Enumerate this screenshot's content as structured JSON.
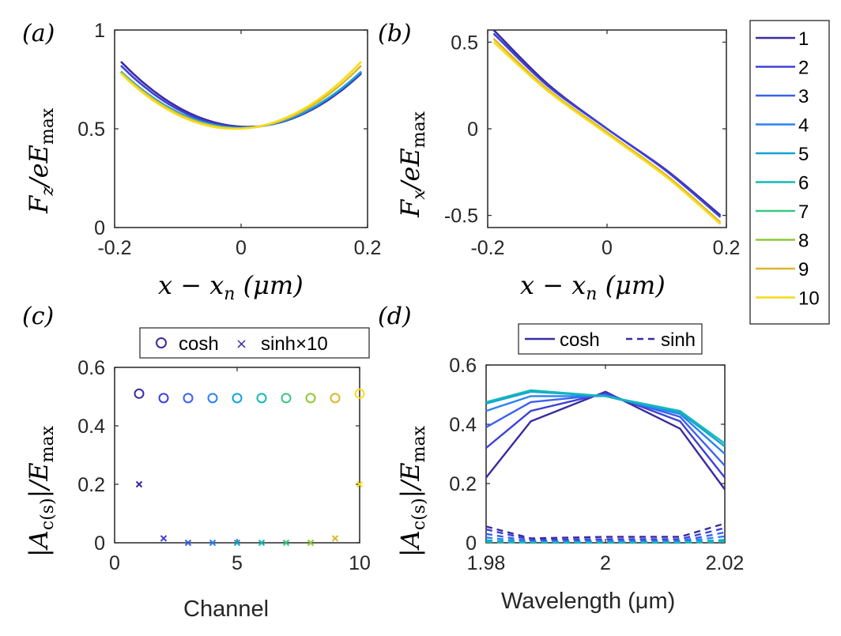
{
  "figure": {
    "palette": [
      "#3a2c9e",
      "#3e41d6",
      "#3a62ef",
      "#2c82f0",
      "#12a3d8",
      "#16b9b6",
      "#3ac87f",
      "#8fc83a",
      "#dcb62f",
      "#f7dc1c"
    ],
    "axis_color": "#262626"
  },
  "panels": {
    "a": {
      "label": "(a)",
      "xlabel": "x − x",
      "xlabel_sub": "n",
      "xlabel_unit": " (μm)",
      "ylabel": "F",
      "ylabel_sub": "z",
      "ylabel_mid": "/eE",
      "ylabel_sub2": "max"
    },
    "b": {
      "label": "(b)",
      "xlabel": "x − x",
      "xlabel_sub": "n",
      "xlabel_unit": " (μm)",
      "ylabel": "F",
      "ylabel_sub": "x",
      "ylabel_mid": "/eE",
      "ylabel_sub2": "max"
    },
    "c": {
      "label": "(c)",
      "xlabel": "Channel",
      "ylabel": "|A",
      "ylabel_sub": "c(s)",
      "ylabel_mid": "|/E",
      "ylabel_sub2": "max"
    },
    "d": {
      "label": "(d)",
      "xlabel": "Wavelength (μm)",
      "ylabel": "|A",
      "ylabel_sub": "c(s)",
      "ylabel_mid": "|/E",
      "ylabel_sub2": "max"
    }
  },
  "chart_data": [
    {
      "id": "a",
      "type": "line",
      "xlim": [
        -0.2,
        0.2
      ],
      "ylim": [
        0,
        1
      ],
      "xticks": [
        "-0.2",
        "0",
        "0.2"
      ],
      "yticks": [
        "0",
        "0.5",
        "1"
      ],
      "x": [
        -0.19,
        0.19
      ],
      "series": [
        {
          "name": "1",
          "color": "#3a2c9e",
          "vertex": 0.01,
          "ymin": 0.51,
          "yleft": 0.84,
          "yright": 0.78
        },
        {
          "name": "2",
          "color": "#3e41d6",
          "vertex": 0.005,
          "ymin": 0.508,
          "yleft": 0.82,
          "yright": 0.785
        },
        {
          "name": "5",
          "color": "#12a3d8",
          "vertex": 0.0,
          "ymin": 0.505,
          "yleft": 0.79,
          "yright": 0.79
        },
        {
          "name": "9",
          "color": "#dcb62f",
          "vertex": -0.005,
          "ymin": 0.502,
          "yleft": 0.785,
          "yright": 0.82
        },
        {
          "name": "10",
          "color": "#f7dc1c",
          "vertex": -0.01,
          "ymin": 0.5,
          "yleft": 0.78,
          "yright": 0.84
        }
      ]
    },
    {
      "id": "b",
      "type": "line",
      "xlim": [
        -0.2,
        0.2
      ],
      "ylim": [
        -0.57,
        0.57
      ],
      "xticks": [
        "-0.2",
        "0",
        "0.2"
      ],
      "yticks": [
        "-0.5",
        "0",
        "0.5"
      ],
      "series": [
        {
          "name": "1",
          "color": "#3a2c9e",
          "x": [
            -0.19,
            -0.1,
            0,
            0.1,
            0.19
          ],
          "y": [
            0.57,
            0.26,
            0.0,
            -0.24,
            -0.5
          ]
        },
        {
          "name": "2",
          "color": "#3e41d6",
          "x": [
            -0.19,
            -0.1,
            0,
            0.1,
            0.19
          ],
          "y": [
            0.55,
            0.25,
            0.0,
            -0.245,
            -0.51
          ]
        },
        {
          "name": "9",
          "color": "#dcb62f",
          "x": [
            -0.19,
            -0.1,
            0,
            0.1,
            0.19
          ],
          "y": [
            0.52,
            0.23,
            -0.02,
            -0.27,
            -0.54
          ]
        },
        {
          "name": "10",
          "color": "#f7dc1c",
          "x": [
            -0.19,
            -0.1,
            0,
            0.1,
            0.19
          ],
          "y": [
            0.5,
            0.22,
            -0.03,
            -0.28,
            -0.55
          ]
        }
      ]
    },
    {
      "id": "c",
      "type": "scatter",
      "xlim": [
        0,
        10
      ],
      "ylim": [
        0,
        0.6
      ],
      "xticks": [
        "0",
        "5",
        "10"
      ],
      "yticks": [
        "0",
        "0.2",
        "0.4",
        "0.6"
      ],
      "x": [
        1,
        2,
        3,
        4,
        5,
        6,
        7,
        8,
        9,
        10
      ],
      "cosh": [
        0.51,
        0.495,
        0.495,
        0.495,
        0.495,
        0.495,
        0.495,
        0.495,
        0.495,
        0.51
      ],
      "sinh_x10": [
        0.2,
        0.015,
        0.0,
        0.0,
        0.0,
        0.0,
        0.0,
        0.0,
        0.015,
        0.2
      ],
      "legend": {
        "cosh": "cosh",
        "sinh": "sinh×10"
      }
    },
    {
      "id": "d",
      "type": "line",
      "xlim": [
        1.98,
        2.02
      ],
      "ylim": [
        0,
        0.6
      ],
      "xticks": [
        "1.98",
        "2",
        "2.02"
      ],
      "yticks": [
        "0",
        "0.2",
        "0.4",
        "0.6"
      ],
      "x": [
        1.98,
        1.9875,
        2.0,
        2.0125,
        2.02
      ],
      "legend": {
        "cosh": "cosh",
        "sinh": "sinh"
      },
      "cosh_series": [
        {
          "name": "1",
          "color": "#3a2c9e",
          "y": [
            0.22,
            0.41,
            0.51,
            0.385,
            0.18
          ]
        },
        {
          "name": "2",
          "color": "#3e41d6",
          "y": [
            0.32,
            0.445,
            0.505,
            0.41,
            0.22
          ]
        },
        {
          "name": "3",
          "color": "#3a62ef",
          "y": [
            0.39,
            0.475,
            0.5,
            0.425,
            0.26
          ]
        },
        {
          "name": "4",
          "color": "#2c82f0",
          "y": [
            0.445,
            0.495,
            0.495,
            0.435,
            0.3
          ]
        },
        {
          "name": "5",
          "color": "#12a3d8",
          "y": [
            0.47,
            0.51,
            0.495,
            0.44,
            0.325
          ]
        },
        {
          "name": "6",
          "color": "#16b9b6",
          "y": [
            0.475,
            0.515,
            0.495,
            0.445,
            0.335
          ]
        }
      ],
      "sinh_series": [
        {
          "name": "1",
          "color": "#3a2c9e",
          "y": [
            0.055,
            0.015,
            0.02,
            0.02,
            0.065
          ]
        },
        {
          "name": "2",
          "color": "#3e41d6",
          "y": [
            0.045,
            0.01,
            0.012,
            0.012,
            0.05
          ]
        },
        {
          "name": "3",
          "color": "#3a62ef",
          "y": [
            0.03,
            0.005,
            0.006,
            0.006,
            0.035
          ]
        },
        {
          "name": "4",
          "color": "#2c82f0",
          "y": [
            0.018,
            0.002,
            0.003,
            0.003,
            0.022
          ]
        },
        {
          "name": "5",
          "color": "#12a3d8",
          "y": [
            0.008,
            0.001,
            0.001,
            0.001,
            0.01
          ]
        },
        {
          "name": "6",
          "color": "#16b9b6",
          "y": [
            0.003,
            0.0,
            0.0,
            0.0,
            0.004
          ]
        }
      ]
    }
  ],
  "legend": {
    "entries": [
      {
        "label": "1",
        "color": "#3a2c9e"
      },
      {
        "label": "2",
        "color": "#3e41d6"
      },
      {
        "label": "3",
        "color": "#3a62ef"
      },
      {
        "label": "4",
        "color": "#2c82f0"
      },
      {
        "label": "5",
        "color": "#12a3d8"
      },
      {
        "label": "6",
        "color": "#16b9b6"
      },
      {
        "label": "7",
        "color": "#3ac87f"
      },
      {
        "label": "8",
        "color": "#8fc83a"
      },
      {
        "label": "9",
        "color": "#dcb62f"
      },
      {
        "label": "10",
        "color": "#f7dc1c"
      }
    ]
  }
}
